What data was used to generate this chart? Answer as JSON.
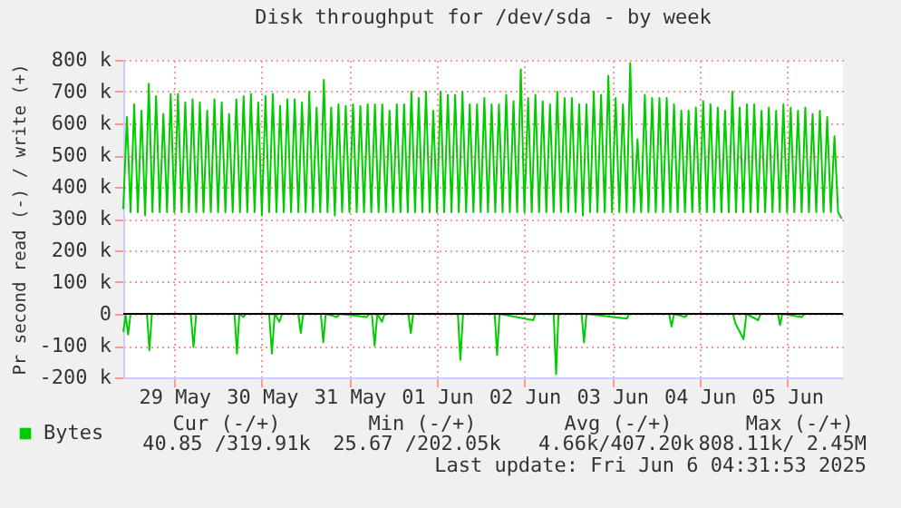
{
  "chart_data": {
    "type": "line",
    "title": "Disk throughput for /dev/sda - by week",
    "ylabel": "Pr second read (-) / write (+)",
    "xlim": [
      "2025-05-28T22:00",
      "2025-06-06T03:20"
    ],
    "xticks": [
      {
        "value": "2025-05-29T12:00",
        "label": "29 May"
      },
      {
        "value": "2025-05-30T12:00",
        "label": "30 May"
      },
      {
        "value": "2025-05-31T12:00",
        "label": "31 May"
      },
      {
        "value": "2025-06-01T12:00",
        "label": "01 Jun"
      },
      {
        "value": "2025-06-02T12:00",
        "label": "02 Jun"
      },
      {
        "value": "2025-06-03T12:00",
        "label": "03 Jun"
      },
      {
        "value": "2025-06-04T12:00",
        "label": "04 Jun"
      },
      {
        "value": "2025-06-05T12:00",
        "label": "05 Jun"
      }
    ],
    "ylim": [
      -200000,
      800000
    ],
    "yticks": [
      {
        "value": -200000,
        "label": "-200 k"
      },
      {
        "value": -100000,
        "label": "-100 k"
      },
      0,
      {
        "value": 100000,
        "label": "100 k"
      },
      {
        "value": 200000,
        "label": "200 k"
      },
      {
        "value": 300000,
        "label": "300 k"
      },
      {
        "value": 400000,
        "label": "400 k"
      },
      {
        "value": 500000,
        "label": "500 k"
      },
      {
        "value": 600000,
        "label": "600 k"
      },
      {
        "value": 700000,
        "label": "700 k"
      },
      {
        "value": 800000,
        "label": "800 k"
      }
    ],
    "grid": true,
    "legend": "bottom",
    "ref_lines": [
      {
        "axis": "y",
        "value": 0,
        "color": "#000000"
      }
    ],
    "annotations": [
      "Cur (-/+)",
      "Min (-/+)",
      "Avg (-/+)",
      "Max (-/+)",
      "40.85 /319.91k",
      "25.67 /202.05k",
      "4.66k/407.20k",
      "808.11k/  2.45M",
      "Last update: Fri Jun  6 04:31:53 2025"
    ],
    "series": [
      {
        "name": "Bytes",
        "color": "#00cc00",
        "x": [
          "2025-05-28T22:00",
          "2025-05-28T23:00",
          "2025-05-29T00:00",
          "2025-05-29T01:00",
          "2025-05-29T02:00",
          "2025-05-29T03:00",
          "2025-05-29T04:00",
          "2025-05-29T05:00",
          "2025-05-29T06:00",
          "2025-05-29T07:00",
          "2025-05-29T08:00",
          "2025-05-29T09:00",
          "2025-05-29T10:00",
          "2025-05-29T11:00",
          "2025-05-29T12:00",
          "2025-05-29T13:00",
          "2025-05-29T14:00",
          "2025-05-29T15:00",
          "2025-05-29T16:00",
          "2025-05-29T17:00",
          "2025-05-29T18:00",
          "2025-05-29T19:00",
          "2025-05-29T20:00",
          "2025-05-29T21:00",
          "2025-05-29T22:00",
          "2025-05-29T23:00",
          "2025-05-30T00:00",
          "2025-05-30T01:00",
          "2025-05-30T02:00",
          "2025-05-30T03:00",
          "2025-05-30T04:00",
          "2025-05-30T05:00",
          "2025-05-30T06:00",
          "2025-05-30T07:00",
          "2025-05-30T08:00",
          "2025-05-30T09:00",
          "2025-05-30T10:00",
          "2025-05-30T11:00",
          "2025-05-30T12:00",
          "2025-05-30T13:00",
          "2025-05-30T14:00",
          "2025-05-30T15:00",
          "2025-05-30T16:00",
          "2025-05-30T17:00",
          "2025-05-30T18:00",
          "2025-05-30T19:00",
          "2025-05-30T20:00",
          "2025-05-30T21:00",
          "2025-05-30T22:00",
          "2025-05-30T23:00",
          "2025-05-31T00:00",
          "2025-05-31T01:00",
          "2025-05-31T02:00",
          "2025-05-31T03:00",
          "2025-05-31T04:00",
          "2025-05-31T05:00",
          "2025-05-31T06:00",
          "2025-05-31T07:00",
          "2025-05-31T08:00",
          "2025-05-31T09:00",
          "2025-05-31T10:00",
          "2025-05-31T11:00",
          "2025-05-31T12:00",
          "2025-05-31T13:00",
          "2025-05-31T14:00",
          "2025-05-31T15:00",
          "2025-05-31T16:00",
          "2025-05-31T17:00",
          "2025-05-31T18:00",
          "2025-05-31T19:00",
          "2025-05-31T20:00",
          "2025-05-31T21:00",
          "2025-05-31T22:00",
          "2025-05-31T23:00",
          "2025-06-01T00:00",
          "2025-06-01T01:00",
          "2025-06-01T02:00",
          "2025-06-01T03:00",
          "2025-06-01T04:00",
          "2025-06-01T05:00",
          "2025-06-01T06:00",
          "2025-06-01T07:00",
          "2025-06-01T08:00",
          "2025-06-01T09:00",
          "2025-06-01T10:00",
          "2025-06-01T11:00",
          "2025-06-01T12:00",
          "2025-06-01T13:00",
          "2025-06-01T14:00",
          "2025-06-01T15:00",
          "2025-06-01T16:00",
          "2025-06-01T17:00",
          "2025-06-01T18:00",
          "2025-06-01T19:00",
          "2025-06-01T20:00",
          "2025-06-01T21:00",
          "2025-06-01T22:00",
          "2025-06-01T23:00",
          "2025-06-02T00:00",
          "2025-06-02T01:00",
          "2025-06-02T02:00",
          "2025-06-02T03:00",
          "2025-06-02T04:00",
          "2025-06-02T05:00",
          "2025-06-02T06:00",
          "2025-06-02T07:00",
          "2025-06-02T08:00",
          "2025-06-02T09:00",
          "2025-06-02T10:00",
          "2025-06-02T11:00",
          "2025-06-02T12:00",
          "2025-06-02T13:00",
          "2025-06-02T14:00",
          "2025-06-02T15:00",
          "2025-06-02T16:00",
          "2025-06-02T17:00",
          "2025-06-02T18:00",
          "2025-06-02T19:00",
          "2025-06-02T20:00",
          "2025-06-02T21:00",
          "2025-06-02T22:00",
          "2025-06-02T23:00",
          "2025-06-03T00:00",
          "2025-06-03T01:00",
          "2025-06-03T02:00",
          "2025-06-03T03:00",
          "2025-06-03T04:00",
          "2025-06-03T05:00",
          "2025-06-03T06:00",
          "2025-06-03T07:00",
          "2025-06-03T08:00",
          "2025-06-03T09:00",
          "2025-06-03T10:00",
          "2025-06-03T11:00",
          "2025-06-03T12:00",
          "2025-06-03T13:00",
          "2025-06-03T14:00",
          "2025-06-03T15:00",
          "2025-06-03T16:00",
          "2025-06-03T17:00",
          "2025-06-03T18:00",
          "2025-06-03T19:00",
          "2025-06-03T20:00",
          "2025-06-03T21:00",
          "2025-06-03T22:00",
          "2025-06-03T23:00",
          "2025-06-04T00:00",
          "2025-06-04T01:00",
          "2025-06-04T02:00",
          "2025-06-04T03:00",
          "2025-06-04T04:00",
          "2025-06-04T05:00",
          "2025-06-04T06:00",
          "2025-06-04T07:00",
          "2025-06-04T08:00",
          "2025-06-04T09:00",
          "2025-06-04T10:00",
          "2025-06-04T11:00",
          "2025-06-04T12:00",
          "2025-06-04T13:00",
          "2025-06-04T14:00",
          "2025-06-04T15:00",
          "2025-06-04T16:00",
          "2025-06-04T17:00",
          "2025-06-04T18:00",
          "2025-06-04T19:00",
          "2025-06-04T20:00",
          "2025-06-04T21:00",
          "2025-06-04T22:00",
          "2025-06-04T23:00",
          "2025-06-05T00:00",
          "2025-06-05T01:00",
          "2025-06-05T02:00",
          "2025-06-05T03:00",
          "2025-06-05T04:00",
          "2025-06-05T05:00",
          "2025-06-05T06:00",
          "2025-06-05T07:00",
          "2025-06-05T08:00",
          "2025-06-05T09:00",
          "2025-06-05T10:00",
          "2025-06-05T11:00",
          "2025-06-05T12:00",
          "2025-06-05T13:00",
          "2025-06-05T14:00",
          "2025-06-05T15:00",
          "2025-06-05T16:00",
          "2025-06-05T17:00",
          "2025-06-05T18:00",
          "2025-06-05T19:00",
          "2025-06-05T20:00",
          "2025-06-05T21:00",
          "2025-06-05T22:00",
          "2025-06-05T23:00",
          "2025-06-06T00:00",
          "2025-06-06T01:00",
          "2025-06-06T02:00",
          "2025-06-06T03:00"
        ],
        "values": [
          330000,
          620000,
          320000,
          660000,
          320000,
          640000,
          310000,
          725000,
          320000,
          686000,
          320000,
          630000,
          320000,
          693000,
          320000,
          693000,
          320000,
          666000,
          320000,
          676000,
          320000,
          666000,
          320000,
          640000,
          320000,
          676000,
          320000,
          666000,
          320000,
          630000,
          320000,
          676000,
          320000,
          686000,
          320000,
          693000,
          320000,
          666000,
          310000,
          686000,
          320000,
          693000,
          320000,
          655000,
          320000,
          676000,
          320000,
          676000,
          320000,
          666000,
          320000,
          700000,
          320000,
          650000,
          320000,
          737000,
          320000,
          650000,
          310000,
          660000,
          320000,
          655000,
          320000,
          660000,
          320000,
          655000,
          320000,
          660000,
          320000,
          660000,
          320000,
          660000,
          320000,
          640000,
          320000,
          660000,
          320000,
          660000,
          320000,
          700000,
          320000,
          680000,
          320000,
          700000,
          320000,
          640000,
          320000,
          700000,
          320000,
          690000,
          320000,
          690000,
          320000,
          700000,
          320000,
          660000,
          320000,
          660000,
          320000,
          680000,
          320000,
          660000,
          320000,
          660000,
          320000,
          690000,
          320000,
          670000,
          320000,
          770000,
          320000,
          680000,
          320000,
          690000,
          320000,
          670000,
          320000,
          660000,
          320000,
          700000,
          320000,
          680000,
          320000,
          680000,
          320000,
          660000,
          310000,
          660000,
          320000,
          700000,
          320000,
          690000,
          320000,
          750000,
          320000,
          680000,
          320000,
          660000,
          320000,
          790000,
          320000,
          550000,
          320000,
          690000,
          320000,
          680000,
          320000,
          680000,
          320000,
          680000,
          320000,
          660000,
          320000,
          640000,
          320000,
          640000,
          320000,
          650000,
          320000,
          670000,
          320000,
          660000,
          320000,
          650000,
          320000,
          640000,
          320000,
          700000,
          320000,
          650000,
          320000,
          660000,
          320000,
          660000,
          320000,
          640000,
          320000,
          650000,
          320000,
          640000,
          320000,
          660000,
          320000,
          650000,
          320000,
          640000,
          320000,
          650000,
          320000,
          630000,
          320000,
          640000,
          320000,
          620000,
          320000,
          560000,
          320000,
          300000
        ]
      },
      {
        "color": "#00cc00",
        "x": [
          "2025-05-28T22:00",
          "2025-05-28T22:40",
          "2025-05-28T23:20",
          "2025-05-29T00:00",
          "2025-05-29T04:30",
          "2025-05-29T05:10",
          "2025-05-29T05:50",
          "2025-05-29T16:30",
          "2025-05-29T17:15",
          "2025-05-29T18:00",
          "2025-05-30T04:30",
          "2025-05-30T05:10",
          "2025-05-30T05:50",
          "2025-05-30T07:00",
          "2025-05-30T07:40",
          "2025-05-30T14:00",
          "2025-05-30T14:45",
          "2025-05-30T15:30",
          "2025-05-30T16:50",
          "2025-05-30T17:30",
          "2025-05-30T22:00",
          "2025-05-30T22:40",
          "2025-05-30T23:20",
          "2025-05-31T04:10",
          "2025-05-31T04:50",
          "2025-05-31T05:30",
          "2025-05-31T08:40",
          "2025-05-31T09:20",
          "2025-05-31T16:45",
          "2025-05-31T17:20",
          "2025-05-31T18:10",
          "2025-05-31T18:55",
          "2025-05-31T19:40",
          "2025-05-31T20:55",
          "2025-05-31T21:40",
          "2025-06-01T04:10",
          "2025-06-01T04:50",
          "2025-06-01T05:30",
          "2025-06-01T17:45",
          "2025-06-01T18:25",
          "2025-06-01T19:10",
          "2025-06-02T03:50",
          "2025-06-02T04:30",
          "2025-06-02T05:10",
          "2025-06-02T14:25",
          "2025-06-02T15:00",
          "2025-06-02T20:00",
          "2025-06-02T20:40",
          "2025-06-02T21:20",
          "2025-06-03T03:40",
          "2025-06-03T04:20",
          "2025-06-03T05:00",
          "2025-06-03T16:05",
          "2025-06-03T16:40",
          "2025-06-04T03:40",
          "2025-06-04T04:20",
          "2025-06-04T05:00",
          "2025-06-04T08:10",
          "2025-06-04T08:50",
          "2025-06-04T21:10",
          "2025-06-04T21:50",
          "2025-06-05T00:05",
          "2025-06-05T00:50",
          "2025-06-05T04:05",
          "2025-06-05T04:40",
          "2025-06-05T09:30",
          "2025-06-05T10:05",
          "2025-06-05T10:40",
          "2025-06-05T16:05",
          "2025-06-05T16:40",
          "2025-06-06T03:20"
        ],
        "values": [
          -57000,
          -5000,
          -65000,
          0,
          0,
          -115000,
          0,
          0,
          -105000,
          0,
          0,
          -125000,
          0,
          -10000,
          0,
          0,
          -125000,
          0,
          -25000,
          0,
          0,
          -60000,
          0,
          0,
          -90000,
          0,
          -10000,
          0,
          -10000,
          0,
          0,
          -100000,
          0,
          -25000,
          0,
          0,
          -60000,
          0,
          0,
          -145000,
          0,
          0,
          -130000,
          0,
          -20000,
          0,
          0,
          -190000,
          0,
          0,
          -90000,
          0,
          -15000,
          0,
          0,
          -40000,
          0,
          -10000,
          0,
          0,
          -30000,
          -80000,
          0,
          -20000,
          0,
          0,
          -35000,
          0,
          -10000,
          0,
          0
        ]
      }
    ]
  }
}
